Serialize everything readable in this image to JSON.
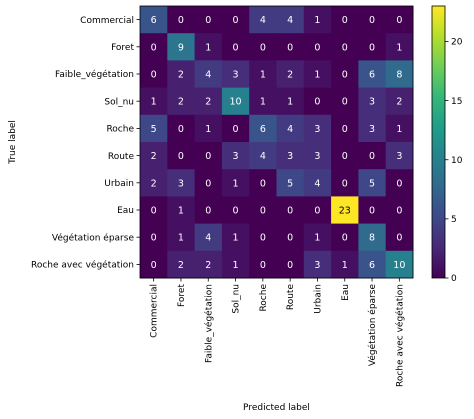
{
  "chart_data": {
    "type": "heatmap",
    "title": "",
    "xlabel": "Predicted label",
    "ylabel": "True label",
    "labels": [
      "Commercial",
      "Foret",
      "Faible_végétation",
      "Sol_nu",
      "Roche",
      "Route",
      "Urbain",
      "Eau",
      "Végétation éparse",
      "Roche avec végétation"
    ],
    "matrix": [
      [
        6,
        0,
        0,
        0,
        4,
        4,
        1,
        0,
        0,
        0
      ],
      [
        0,
        9,
        1,
        0,
        0,
        0,
        0,
        0,
        0,
        1
      ],
      [
        0,
        2,
        4,
        3,
        1,
        2,
        1,
        0,
        6,
        8
      ],
      [
        1,
        2,
        2,
        10,
        1,
        1,
        0,
        0,
        3,
        2
      ],
      [
        5,
        0,
        1,
        0,
        6,
        4,
        3,
        0,
        3,
        1
      ],
      [
        2,
        0,
        0,
        3,
        4,
        3,
        3,
        0,
        0,
        3
      ],
      [
        2,
        3,
        0,
        1,
        0,
        5,
        4,
        0,
        5,
        0
      ],
      [
        0,
        1,
        0,
        0,
        0,
        0,
        0,
        23,
        0,
        0
      ],
      [
        0,
        1,
        4,
        1,
        0,
        0,
        1,
        0,
        8,
        0
      ],
      [
        0,
        2,
        2,
        1,
        0,
        0,
        3,
        1,
        6,
        10
      ]
    ],
    "colormap": "viridis",
    "vmin": 0,
    "vmax": 23,
    "colorbar_ticks": [
      0,
      5,
      10,
      15,
      20
    ],
    "grid": false
  }
}
